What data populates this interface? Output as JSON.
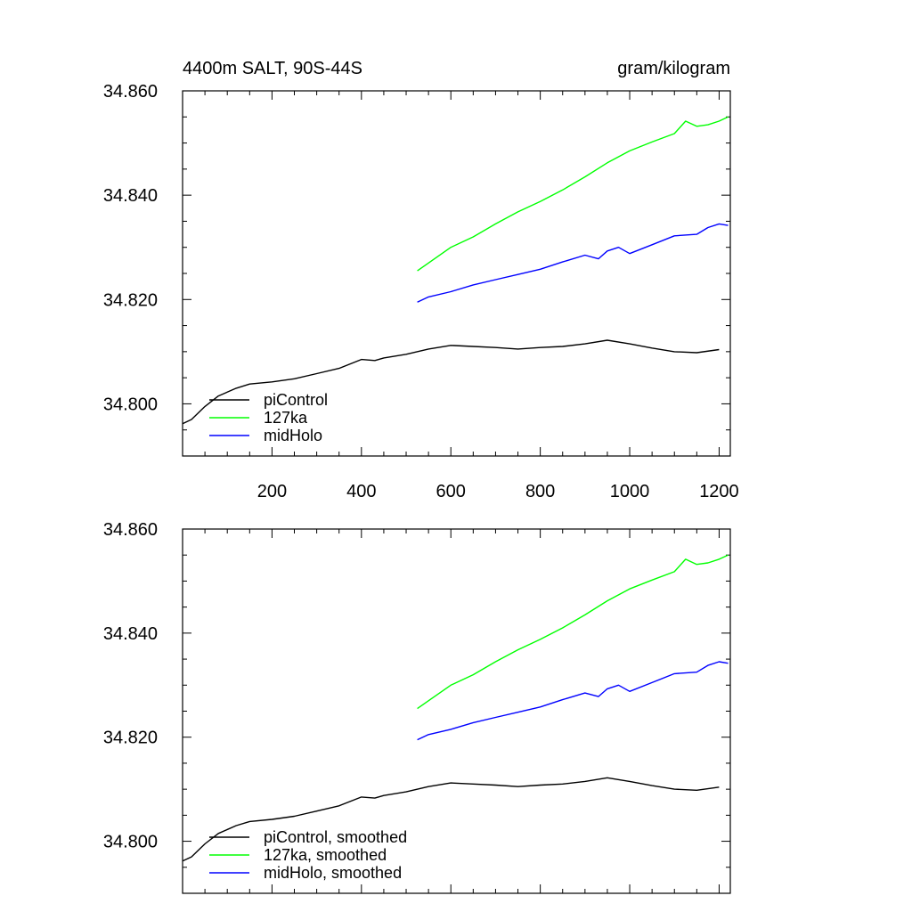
{
  "chart_data": [
    {
      "type": "line",
      "title_left": "4400m SALT, 90S-44S",
      "title_right": "gram/kilogram",
      "xlim": [
        0,
        1225
      ],
      "ylim": [
        34.79,
        34.86
      ],
      "xticks": [
        200,
        400,
        600,
        800,
        1000,
        1200
      ],
      "xtick_labels": [
        "200",
        "400",
        "600",
        "800",
        "1000",
        "1200"
      ],
      "yticks": [
        34.8,
        34.82,
        34.84,
        34.86
      ],
      "ytick_labels": [
        "34.800",
        "34.820",
        "34.840",
        "34.860"
      ],
      "series": [
        {
          "name": "piControl",
          "color": "#000000",
          "x": [
            0,
            20,
            50,
            80,
            120,
            150,
            200,
            250,
            300,
            350,
            400,
            430,
            450,
            500,
            550,
            600,
            650,
            700,
            750,
            800,
            850,
            900,
            950,
            1000,
            1050,
            1100,
            1150,
            1200
          ],
          "y": [
            34.7962,
            34.797,
            34.7995,
            34.8015,
            34.803,
            34.8038,
            34.8042,
            34.8048,
            34.8058,
            34.8068,
            34.8085,
            34.8083,
            34.8088,
            34.8095,
            34.8105,
            34.8112,
            34.811,
            34.8108,
            34.8105,
            34.8108,
            34.811,
            34.8115,
            34.8122,
            34.8115,
            34.8107,
            34.81,
            34.8098,
            34.8104
          ]
        },
        {
          "name": "127ka",
          "color": "#00ff00",
          "x": [
            525,
            550,
            600,
            650,
            700,
            750,
            800,
            850,
            900,
            950,
            1000,
            1050,
            1100,
            1125,
            1150,
            1175,
            1200,
            1220
          ],
          "y": [
            34.8255,
            34.827,
            34.83,
            34.832,
            34.8345,
            34.8368,
            34.8388,
            34.841,
            34.8435,
            34.8462,
            34.8485,
            34.8502,
            34.8518,
            34.8542,
            34.8532,
            34.8535,
            34.8542,
            34.855
          ]
        },
        {
          "name": "midHolo",
          "color": "#0000ff",
          "x": [
            525,
            550,
            600,
            650,
            700,
            750,
            800,
            850,
            900,
            930,
            950,
            975,
            1000,
            1050,
            1100,
            1150,
            1175,
            1200,
            1220
          ],
          "y": [
            34.8195,
            34.8205,
            34.8215,
            34.8228,
            34.8238,
            34.8248,
            34.8258,
            34.8272,
            34.8285,
            34.8278,
            34.8293,
            34.83,
            34.8288,
            34.8305,
            34.8322,
            34.8325,
            34.8338,
            34.8345,
            34.8342
          ]
        }
      ],
      "legend": {
        "placement": "bottom-left",
        "labels": [
          "piControl",
          "127ka",
          "midHolo"
        ]
      }
    },
    {
      "type": "line",
      "xlim": [
        0,
        1225
      ],
      "ylim": [
        34.79,
        34.86
      ],
      "yticks": [
        34.8,
        34.82,
        34.84,
        34.86
      ],
      "ytick_labels": [
        "34.800",
        "34.820",
        "34.840",
        "34.860"
      ],
      "series": [
        {
          "name": "piControl, smoothed",
          "color": "#000000",
          "x": [
            0,
            20,
            50,
            80,
            120,
            150,
            200,
            250,
            300,
            350,
            400,
            430,
            450,
            500,
            550,
            600,
            650,
            700,
            750,
            800,
            850,
            900,
            950,
            1000,
            1050,
            1100,
            1150,
            1200
          ],
          "y": [
            34.7962,
            34.797,
            34.7995,
            34.8015,
            34.803,
            34.8038,
            34.8042,
            34.8048,
            34.8058,
            34.8068,
            34.8085,
            34.8083,
            34.8088,
            34.8095,
            34.8105,
            34.8112,
            34.811,
            34.8108,
            34.8105,
            34.8108,
            34.811,
            34.8115,
            34.8122,
            34.8115,
            34.8107,
            34.81,
            34.8098,
            34.8104
          ]
        },
        {
          "name": "127ka, smoothed",
          "color": "#00ff00",
          "x": [
            525,
            550,
            600,
            650,
            700,
            750,
            800,
            850,
            900,
            950,
            1000,
            1050,
            1100,
            1125,
            1150,
            1175,
            1200,
            1220
          ],
          "y": [
            34.8255,
            34.827,
            34.83,
            34.832,
            34.8345,
            34.8368,
            34.8388,
            34.841,
            34.8435,
            34.8462,
            34.8485,
            34.8502,
            34.8518,
            34.8542,
            34.8532,
            34.8535,
            34.8542,
            34.855
          ]
        },
        {
          "name": "midHolo, smoothed",
          "color": "#0000ff",
          "x": [
            525,
            550,
            600,
            650,
            700,
            750,
            800,
            850,
            900,
            930,
            950,
            975,
            1000,
            1050,
            1100,
            1150,
            1175,
            1200,
            1220
          ],
          "y": [
            34.8195,
            34.8205,
            34.8215,
            34.8228,
            34.8238,
            34.8248,
            34.8258,
            34.8272,
            34.8285,
            34.8278,
            34.8293,
            34.83,
            34.8288,
            34.8305,
            34.8322,
            34.8325,
            34.8338,
            34.8345,
            34.8342
          ]
        }
      ],
      "legend": {
        "placement": "bottom-left",
        "labels": [
          "piControl, smoothed",
          "127ka, smoothed",
          "midHolo, smoothed"
        ]
      }
    }
  ]
}
